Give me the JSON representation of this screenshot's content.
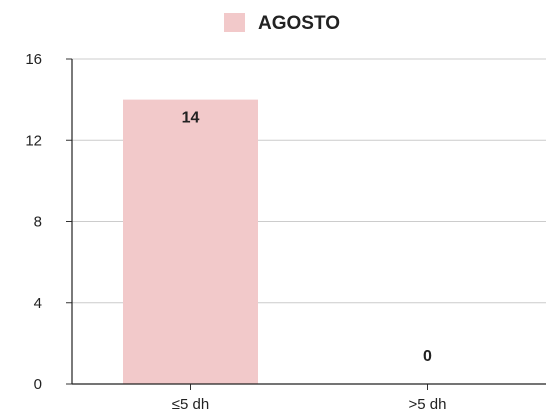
{
  "chart_data": {
    "type": "bar",
    "categories": [
      "≤5 dh",
      ">5 dh"
    ],
    "series": [
      {
        "name": "AGOSTO",
        "values": [
          14,
          0
        ],
        "color": "#f2c9ca"
      }
    ],
    "data_labels": [
      "14",
      "0"
    ],
    "ylim": [
      0,
      16
    ],
    "y_ticks": [
      0,
      4,
      8,
      12,
      16
    ],
    "title": "",
    "xlabel": "",
    "ylabel": "",
    "grid": true,
    "legend": {
      "placement": "top-center",
      "label": "AGOSTO"
    }
  }
}
